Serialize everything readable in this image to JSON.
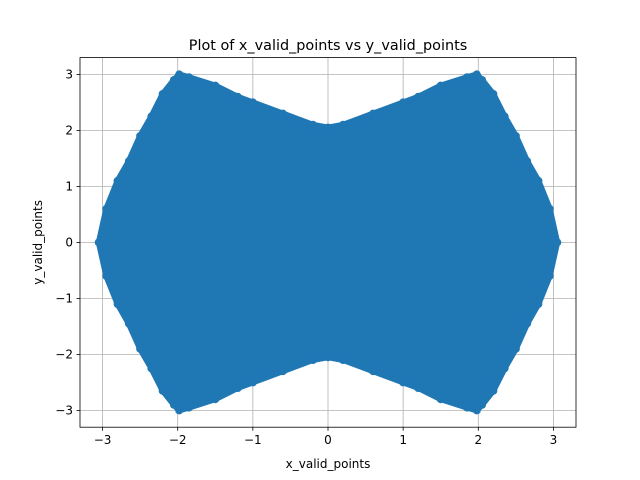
{
  "chart_data": {
    "type": "scatter",
    "title": "Plot of x_valid_points vs y_valid_points",
    "xlabel": "x_valid_points",
    "ylabel": "y_valid_points",
    "xlim": [
      -3.3,
      3.3
    ],
    "ylim": [
      -3.3,
      3.3
    ],
    "xticks": [
      -3,
      -2,
      -1,
      0,
      1,
      2,
      3
    ],
    "yticks": [
      -3,
      -2,
      -1,
      0,
      1,
      2,
      3
    ],
    "xtick_labels": [
      "−3",
      "−2",
      "−1",
      "0",
      "1",
      "2",
      "3"
    ],
    "ytick_labels": [
      "−3",
      "−2",
      "−1",
      "0",
      "1",
      "2",
      "3"
    ],
    "grid": true,
    "series_color": "#1f77b4",
    "upper_boundary": [
      [
        -3.05,
        0.0
      ],
      [
        -2.95,
        0.6
      ],
      [
        -2.8,
        1.1
      ],
      [
        -2.65,
        1.45
      ],
      [
        -2.5,
        1.9
      ],
      [
        -2.35,
        2.25
      ],
      [
        -2.2,
        2.65
      ],
      [
        -2.05,
        2.9
      ],
      [
        -1.98,
        3.0
      ],
      [
        -1.85,
        2.95
      ],
      [
        -1.5,
        2.8
      ],
      [
        -1.2,
        2.6
      ],
      [
        -1.0,
        2.5
      ],
      [
        -0.6,
        2.3
      ],
      [
        -0.2,
        2.1
      ],
      [
        0.0,
        2.05
      ],
      [
        0.2,
        2.1
      ],
      [
        0.6,
        2.3
      ],
      [
        1.0,
        2.5
      ],
      [
        1.2,
        2.6
      ],
      [
        1.5,
        2.8
      ],
      [
        1.85,
        2.95
      ],
      [
        1.98,
        3.0
      ],
      [
        2.05,
        2.9
      ],
      [
        2.2,
        2.65
      ],
      [
        2.35,
        2.25
      ],
      [
        2.5,
        1.9
      ],
      [
        2.65,
        1.45
      ],
      [
        2.8,
        1.1
      ],
      [
        2.95,
        0.6
      ],
      [
        3.05,
        0.0
      ]
    ],
    "lower_boundary": [
      [
        3.05,
        0.0
      ],
      [
        2.95,
        -0.6
      ],
      [
        2.8,
        -1.1
      ],
      [
        2.65,
        -1.45
      ],
      [
        2.5,
        -1.9
      ],
      [
        2.35,
        -2.25
      ],
      [
        2.2,
        -2.65
      ],
      [
        2.05,
        -2.9
      ],
      [
        1.98,
        -3.0
      ],
      [
        1.85,
        -2.95
      ],
      [
        1.5,
        -2.8
      ],
      [
        1.2,
        -2.6
      ],
      [
        1.0,
        -2.5
      ],
      [
        0.6,
        -2.3
      ],
      [
        0.2,
        -2.1
      ],
      [
        0.0,
        -2.05
      ],
      [
        -0.2,
        -2.1
      ],
      [
        -0.6,
        -2.3
      ],
      [
        -1.0,
        -2.5
      ],
      [
        -1.2,
        -2.6
      ],
      [
        -1.5,
        -2.8
      ],
      [
        -1.85,
        -2.95
      ],
      [
        -1.98,
        -3.0
      ],
      [
        -2.05,
        -2.9
      ],
      [
        -2.2,
        -2.65
      ],
      [
        -2.35,
        -2.25
      ],
      [
        -2.5,
        -1.9
      ],
      [
        -2.65,
        -1.45
      ],
      [
        -2.8,
        -1.1
      ],
      [
        -2.95,
        -0.6
      ],
      [
        -3.05,
        0.0
      ]
    ]
  }
}
